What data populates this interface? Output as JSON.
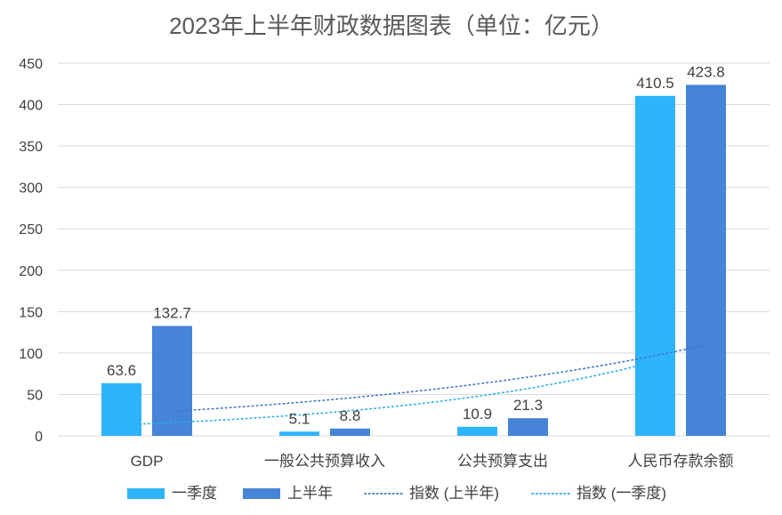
{
  "chart_data": {
    "type": "bar",
    "title": "2023年上半年财政数据图表（单位：亿元）",
    "categories": [
      "GDP",
      "一般公共预算收入",
      "公共预算支出",
      "人民币存款余额"
    ],
    "series": [
      {
        "name": "一季度",
        "values": [
          63.6,
          5.1,
          10.9,
          410.5
        ],
        "color": "#2EB4FB"
      },
      {
        "name": "上半年",
        "values": [
          132.7,
          8.8,
          21.3,
          423.8
        ],
        "color": "#4584D6"
      }
    ],
    "trendlines": [
      {
        "name": "指数 (上半年)",
        "of_series": "上半年",
        "style": "dotted",
        "color": "#3B77C6",
        "type": "exponential"
      },
      {
        "name": "指数 (一季度)",
        "of_series": "一季度",
        "style": "dotted",
        "color": "#2AAEE8",
        "type": "exponential"
      }
    ],
    "ylim": [
      0,
      450
    ],
    "yticks": [
      0,
      50,
      100,
      150,
      200,
      250,
      300,
      350,
      400,
      450
    ],
    "grid": true,
    "legend": "bottom"
  }
}
